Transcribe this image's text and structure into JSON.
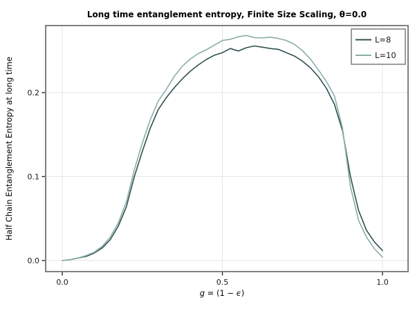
{
  "chart_data": {
    "type": "line",
    "title": "Long time entanglement entropy, Finite Size Scaling, θ=0.0",
    "xlabel": "g = (1 − ϵ)",
    "xlabel_parts": [
      "g",
      " = (1 − ",
      "ϵ",
      ")"
    ],
    "ylabel": "Half Chain Entanglement Entropy at long time",
    "xlim": [
      -0.052,
      1.08
    ],
    "ylim": [
      -0.0132,
      0.2798
    ],
    "grid": true,
    "legend_position": "upper right",
    "grid_color": "#e6e6e6",
    "frame_color": "#7f7f7f",
    "tick_color": "#262626",
    "text_color": "#1a1a1a",
    "xticks": {
      "values": [
        0.0,
        0.5,
        1.0
      ],
      "labels": [
        "0.0",
        "0.5",
        "1.0"
      ]
    },
    "yticks": {
      "values": [
        0.0,
        0.1,
        0.2
      ],
      "labels": [
        "0.0",
        "0.1",
        "0.2"
      ]
    },
    "x": [
      0.0,
      0.025,
      0.05,
      0.075,
      0.1,
      0.125,
      0.15,
      0.175,
      0.2,
      0.225,
      0.25,
      0.275,
      0.3,
      0.325,
      0.35,
      0.375,
      0.4,
      0.425,
      0.45,
      0.475,
      0.5,
      0.525,
      0.55,
      0.575,
      0.6,
      0.625,
      0.65,
      0.675,
      0.7,
      0.725,
      0.75,
      0.775,
      0.8,
      0.825,
      0.85,
      0.875,
      0.9,
      0.925,
      0.95,
      0.975,
      1.0
    ],
    "series": [
      {
        "name": "L=8",
        "color": "#2f4f4f",
        "values": [
          0.0,
          0.001,
          0.003,
          0.005,
          0.009,
          0.015,
          0.025,
          0.041,
          0.064,
          0.1,
          0.13,
          0.158,
          0.18,
          0.194,
          0.206,
          0.2165,
          0.2255,
          0.233,
          0.2395,
          0.2445,
          0.2475,
          0.2525,
          0.2495,
          0.2535,
          0.2555,
          0.254,
          0.2525,
          0.2515,
          0.2475,
          0.2435,
          0.2375,
          0.2295,
          0.219,
          0.205,
          0.186,
          0.155,
          0.1,
          0.06,
          0.036,
          0.022,
          0.012
        ]
      },
      {
        "name": "L=10",
        "color": "#8aada9",
        "values": [
          0.0,
          0.001,
          0.003,
          0.006,
          0.01,
          0.017,
          0.028,
          0.045,
          0.07,
          0.108,
          0.14,
          0.168,
          0.19,
          0.204,
          0.2195,
          0.2315,
          0.24,
          0.2465,
          0.251,
          0.2565,
          0.262,
          0.2635,
          0.2665,
          0.268,
          0.2655,
          0.265,
          0.266,
          0.2645,
          0.262,
          0.2575,
          0.25,
          0.24,
          0.227,
          0.213,
          0.196,
          0.158,
          0.088,
          0.048,
          0.028,
          0.014,
          0.004
        ]
      }
    ]
  }
}
